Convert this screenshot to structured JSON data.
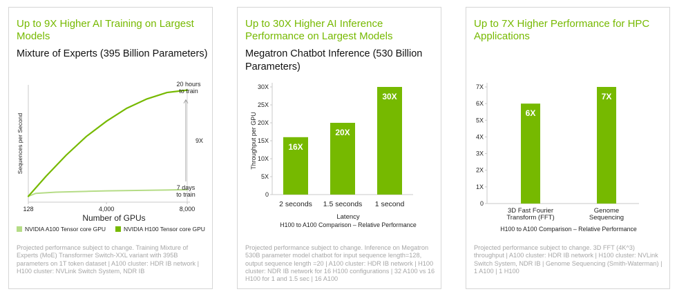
{
  "colors": {
    "accent": "#76b900",
    "h100": "#76b900",
    "a100": "#b5dc86",
    "axis": "#c8c8c8",
    "grid": "#e0e0e0",
    "footnote": "#a6a6a6"
  },
  "cards": [
    {
      "headline": "Up to 9X Higher AI Training on Largest Models",
      "subtitle": "Mixture of Experts (395 Billion Parameters)",
      "footnote": "Projected performance subject to change. Training Mixture of Experts (MoE) Transformer Switch-XXL variant with 395B parameters on 1T token dataset  |  A100 cluster: HDR IB network  |  H100 cluster: NVLink Switch System, NDR IB",
      "legend": [
        "NVIDIA A100 Tensor core GPU",
        "NVIDIA H100 Tensor core GPU"
      ]
    },
    {
      "headline": "Up to 30X Higher AI Inference Performance on Largest Models",
      "subtitle": "Megatron Chatbot Inference (530 Billion Parameters)",
      "footnote": "Projected performance subject to change. Inference on Megatron 530B parameter model chatbot for input sequence length=128, output sequence length =20  |  A100 cluster: HDR IB network  |  H100 cluster: NDR IB network for 16 H100 configurations  |  32 A100 vs 16 H100 for 1 and 1.5 sec  |  16 A100"
    },
    {
      "headline": "Up to 7X Higher Performance for HPC Applications",
      "footnote": "Projected performance subject to change. 3D FFT (4K^3) throughput  |  A100 cluster: HDR IB network  |  H100 cluster: NVLink Switch System, NDR IB  |  Genome Sequencing (Smith-Waterman)  |  1 A100  |  1 H100"
    }
  ],
  "chart_data": [
    {
      "type": "line",
      "xlabel": "Number of GPUs",
      "ylabel": "Sequences per Second",
      "x_ticks": [
        "128",
        "4,000",
        "8,000"
      ],
      "xlim": [
        128,
        8000
      ],
      "ylim": [
        0,
        1
      ],
      "grid": false,
      "legend_position": "bottom",
      "series": [
        {
          "name": "NVIDIA A100 Tensor core GPU",
          "x": [
            128,
            500,
            1500,
            3000,
            4000,
            5500,
            7000,
            8000
          ],
          "y": [
            0.05,
            0.075,
            0.085,
            0.092,
            0.096,
            0.1,
            0.104,
            0.106
          ]
        },
        {
          "name": "NVIDIA H100 Tensor core GPU",
          "x": [
            128,
            1000,
            2000,
            3000,
            4000,
            5000,
            6000,
            7000,
            8000
          ],
          "y": [
            0.05,
            0.22,
            0.4,
            0.56,
            0.69,
            0.8,
            0.88,
            0.935,
            0.955
          ]
        }
      ],
      "annotations": {
        "top": [
          "20 hours",
          "to train"
        ],
        "bottom": [
          "7 days",
          "to train"
        ],
        "ratio": "9X"
      }
    },
    {
      "type": "bar",
      "categories": [
        "2 seconds",
        "1.5 seconds",
        "1 second"
      ],
      "values": [
        16,
        20,
        30
      ],
      "value_labels": [
        "16X",
        "20X",
        "30X"
      ],
      "y_ticks": [
        "0",
        "5X",
        "10X",
        "15X",
        "20X",
        "25X",
        "30X"
      ],
      "ylim": [
        0,
        30
      ],
      "ylabel": "Throughput per GPU",
      "xlabel": "Latency",
      "caption": "H100 to A100 Comparison – Relative Performance",
      "grid": false
    },
    {
      "type": "bar",
      "categories": [
        "3D Fast Fourier Transform (FFT)",
        "Genome Sequencing"
      ],
      "category_lines": [
        [
          "3D Fast Fourier",
          "Transform (FFT)"
        ],
        [
          "Genome",
          "Sequencing"
        ]
      ],
      "values": [
        6,
        7
      ],
      "value_labels": [
        "6X",
        "7X"
      ],
      "y_ticks": [
        "0",
        "1X",
        "2X",
        "3X",
        "4X",
        "5X",
        "6X",
        "7X"
      ],
      "ylim": [
        0,
        7
      ],
      "caption": "H100 to A100 Comparison – Relative Performance",
      "grid": false
    }
  ]
}
